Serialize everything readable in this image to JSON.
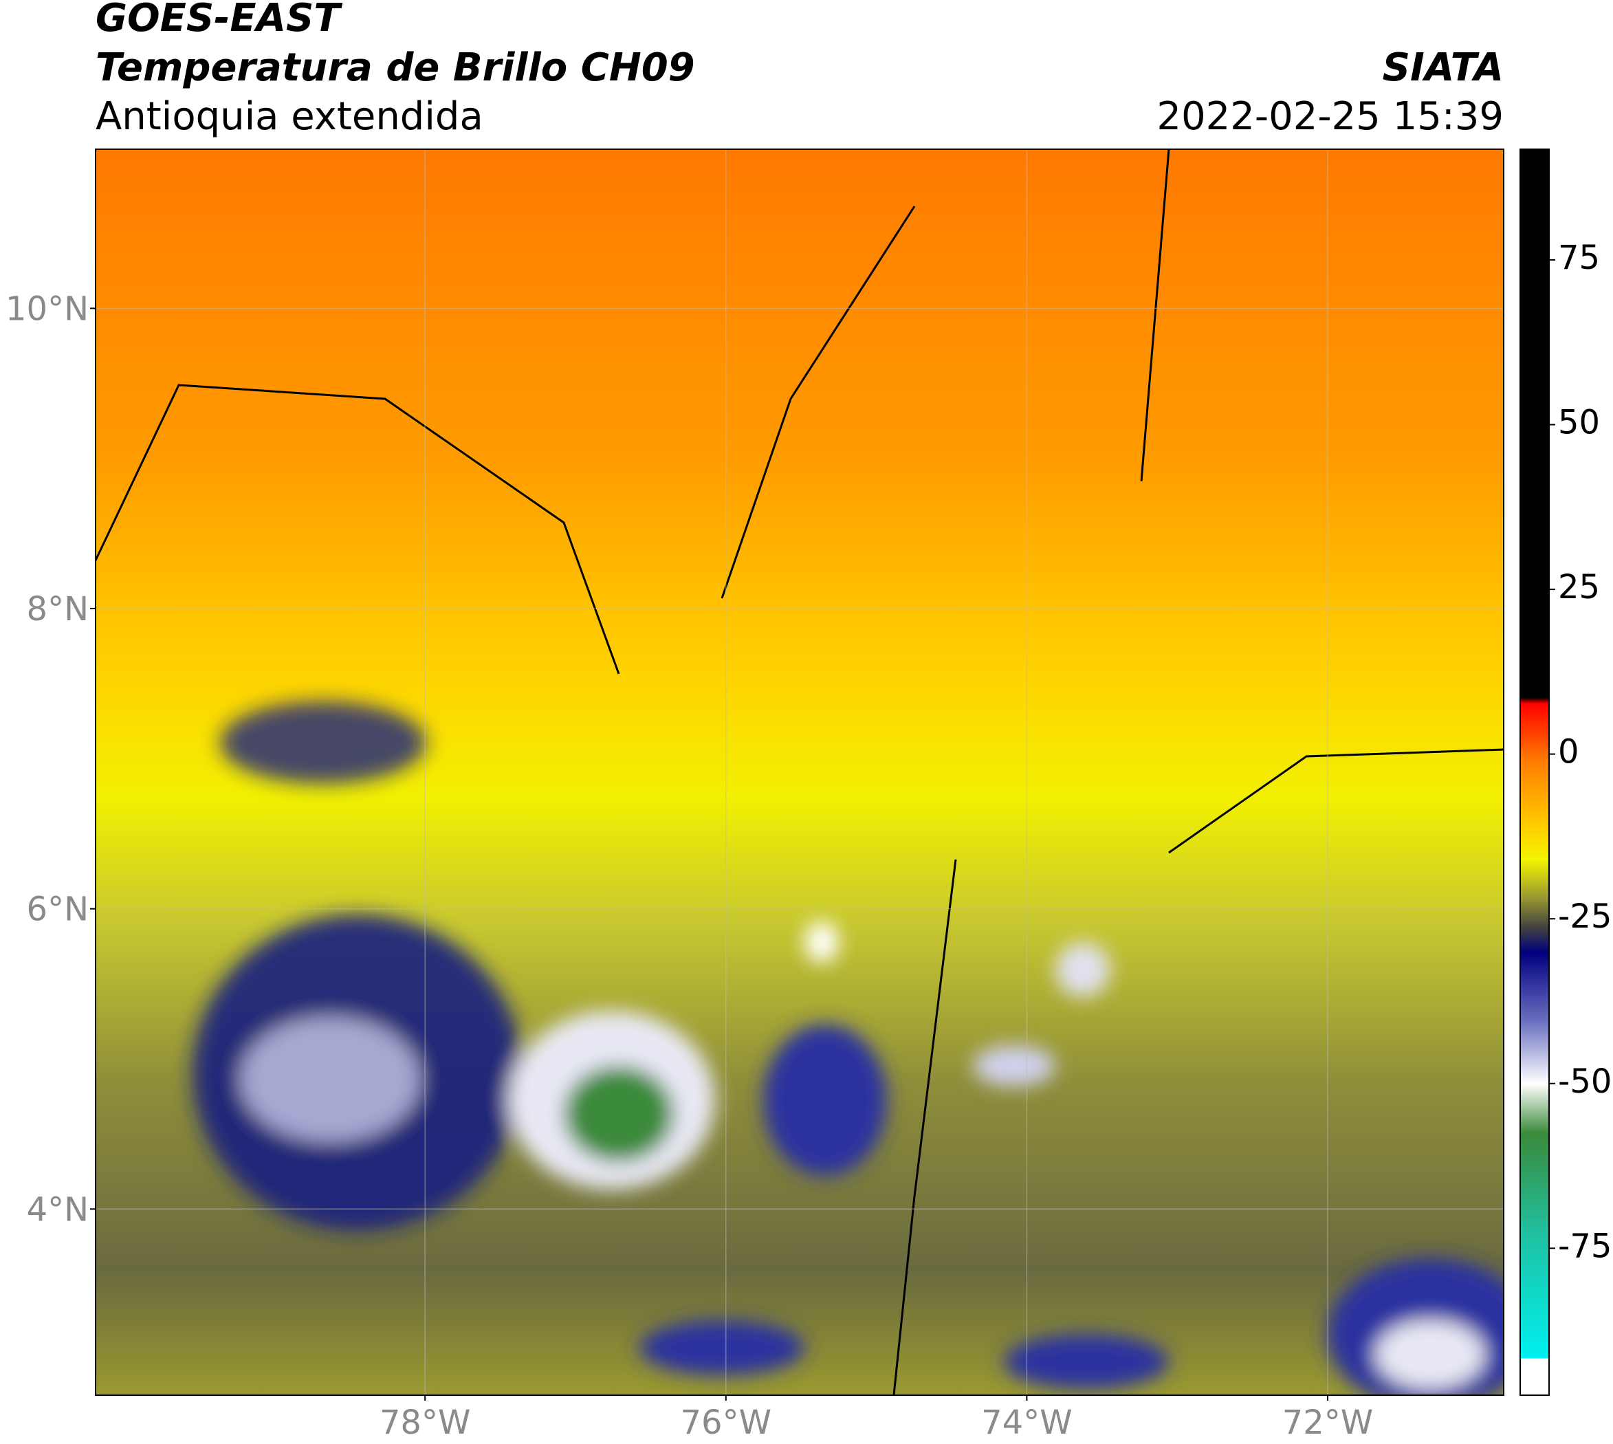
{
  "chart_data": {
    "type": "map",
    "title": "GOES-EAST",
    "subtitle": "Temperatura de Brillo CH09",
    "region": "Antioquia extendida",
    "source": "SIATA",
    "datetime": "2022-02-25 15:39",
    "xlim": [
      -80.19,
      -70.83
    ],
    "ylim": [
      2.76,
      11.06
    ],
    "xticks": [
      {
        "value": -78,
        "label": "78°W"
      },
      {
        "value": -76,
        "label": "76°W"
      },
      {
        "value": -74,
        "label": "74°W"
      },
      {
        "value": -72,
        "label": "72°W"
      }
    ],
    "yticks": [
      {
        "value": 4,
        "label": "4°N"
      },
      {
        "value": 6,
        "label": "6°N"
      },
      {
        "value": 8,
        "label": "8°N"
      },
      {
        "value": 10,
        "label": "10°N"
      }
    ],
    "grid": true,
    "colorbar": {
      "clim": [
        -97.3,
        91.8
      ],
      "ticks": [
        -75,
        -50,
        -25,
        0,
        25,
        50,
        75
      ]
    }
  }
}
